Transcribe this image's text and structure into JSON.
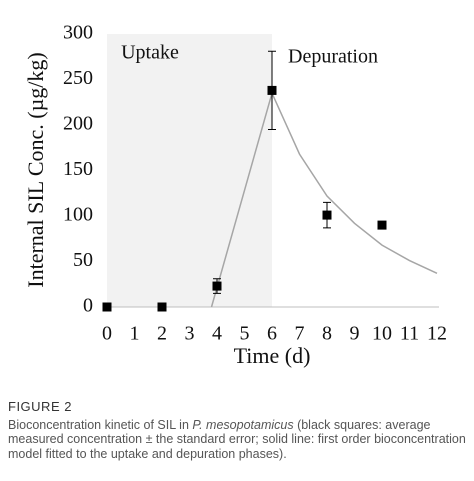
{
  "chart_data": {
    "type": "combo",
    "xlabel": "Time (d)",
    "ylabel": "Internal SIL Conc. (µg/kg)",
    "xlim": [
      0,
      12
    ],
    "xticks": [
      0,
      1,
      2,
      3,
      4,
      5,
      6,
      7,
      8,
      9,
      10,
      11,
      12
    ],
    "ylim": [
      0,
      300
    ],
    "yticks": [
      0,
      50,
      100,
      150,
      200,
      250,
      300
    ],
    "shaded_x": [
      0,
      6
    ],
    "shade_color": "#f2f2f2",
    "annotations": [
      "Uptake",
      "Depuration"
    ],
    "series": [
      {
        "type": "scatter",
        "color": "#000000",
        "x": [
          0,
          2,
          4,
          6,
          8,
          10
        ],
        "values": [
          0,
          0,
          23,
          238,
          101,
          90
        ],
        "errors": [
          0,
          0,
          8,
          43,
          14,
          4
        ]
      },
      {
        "type": "line",
        "color": "#a6a6a6",
        "x": [
          3.8,
          6,
          7,
          8,
          9,
          10,
          11,
          12
        ],
        "values": [
          0,
          235,
          168,
          122,
          92,
          68,
          51,
          37
        ]
      }
    ]
  },
  "caption": {
    "label": "FIGURE 2",
    "parts": [
      "Bioconcentration kinetic of SIL in ",
      "P. mesopotamicus",
      " (black squares: average measured concentration ± the standard error; solid line: first order bioconcentration model fitted to the uptake and depuration phases)."
    ]
  }
}
